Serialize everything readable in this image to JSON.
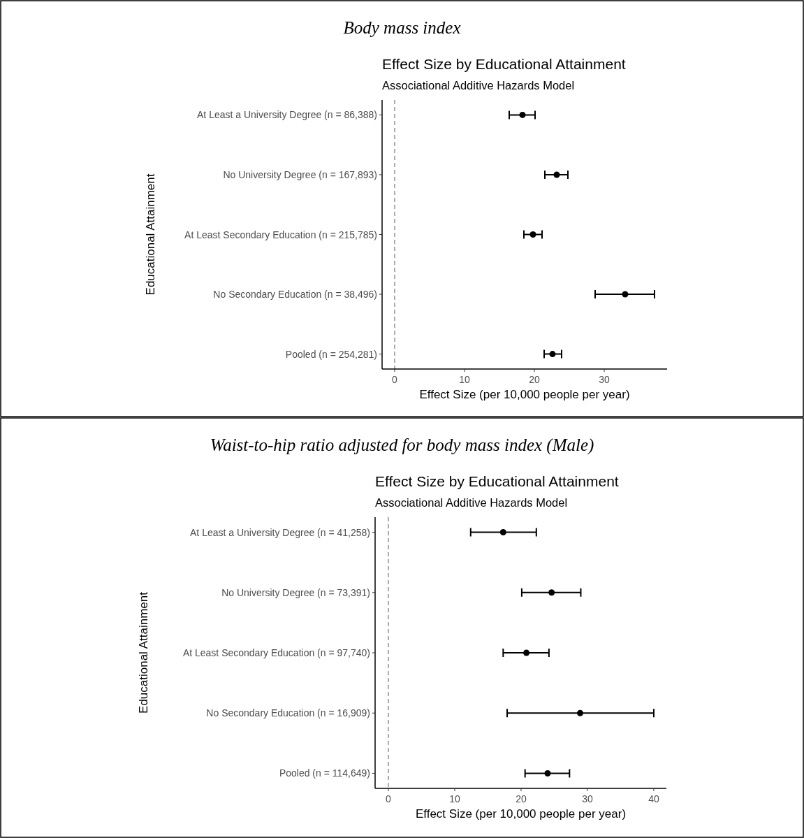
{
  "chart_data": [
    {
      "type": "scatter",
      "orientation": "horizontal",
      "annotations": [
        "Body mass index"
      ],
      "title": "Effect Size by Educational Attainment",
      "subtitle": "Associational Additive Hazards Model",
      "xlabel": "Effect Size (per 10,000 people per year)",
      "ylabel": "Educational Attainment",
      "categories": [
        "At Least a University Degree (n = 86,388)",
        "No University Degree (n = 167,893)",
        "At Least Secondary Education (n = 215,785)",
        "No Secondary Education (n = 38,496)",
        "Pooled (n = 254,281)"
      ],
      "values": [
        18.3,
        23.2,
        19.8,
        33.0,
        22.6
      ],
      "errors": [
        [
          16.4,
          20.1
        ],
        [
          21.5,
          24.8
        ],
        [
          18.5,
          21.1
        ],
        [
          28.7,
          37.2
        ],
        [
          21.4,
          23.9
        ]
      ],
      "color": "#000000",
      "marker": "circle",
      "xlim": [
        -1.8,
        39.0
      ],
      "xticks": [
        0,
        10,
        20,
        30
      ],
      "ref_lines": [
        {
          "axis": "x",
          "value": 0,
          "color": "#808080",
          "line_style": "dashed"
        }
      ]
    },
    {
      "type": "scatter",
      "orientation": "horizontal",
      "annotations": [
        "Waist-to-hip ratio adjusted for body mass index (Male)"
      ],
      "title": "Effect Size by Educational Attainment",
      "subtitle": "Associational Additive Hazards Model",
      "xlabel": "Effect Size (per 10,000 people per year)",
      "ylabel": "Educational Attainment",
      "categories": [
        "At Least a University Degree (n = 41,258)",
        "No University Degree (n = 73,391)",
        "At Least Secondary Education (n = 97,740)",
        "No Secondary Education (n = 16,909)",
        "Pooled (n = 114,649)"
      ],
      "values": [
        17.3,
        24.6,
        20.8,
        28.9,
        24.0
      ],
      "errors": [
        [
          12.4,
          22.3
        ],
        [
          20.1,
          29.0
        ],
        [
          17.3,
          24.2
        ],
        [
          17.9,
          40.0
        ],
        [
          20.6,
          27.3
        ]
      ],
      "color": "#000000",
      "marker": "circle",
      "xlim": [
        -2.0,
        41.9
      ],
      "xticks": [
        0,
        10,
        20,
        30,
        40
      ],
      "ref_lines": [
        {
          "axis": "x",
          "value": 0,
          "color": "#808080",
          "line_style": "dashed"
        }
      ]
    }
  ]
}
